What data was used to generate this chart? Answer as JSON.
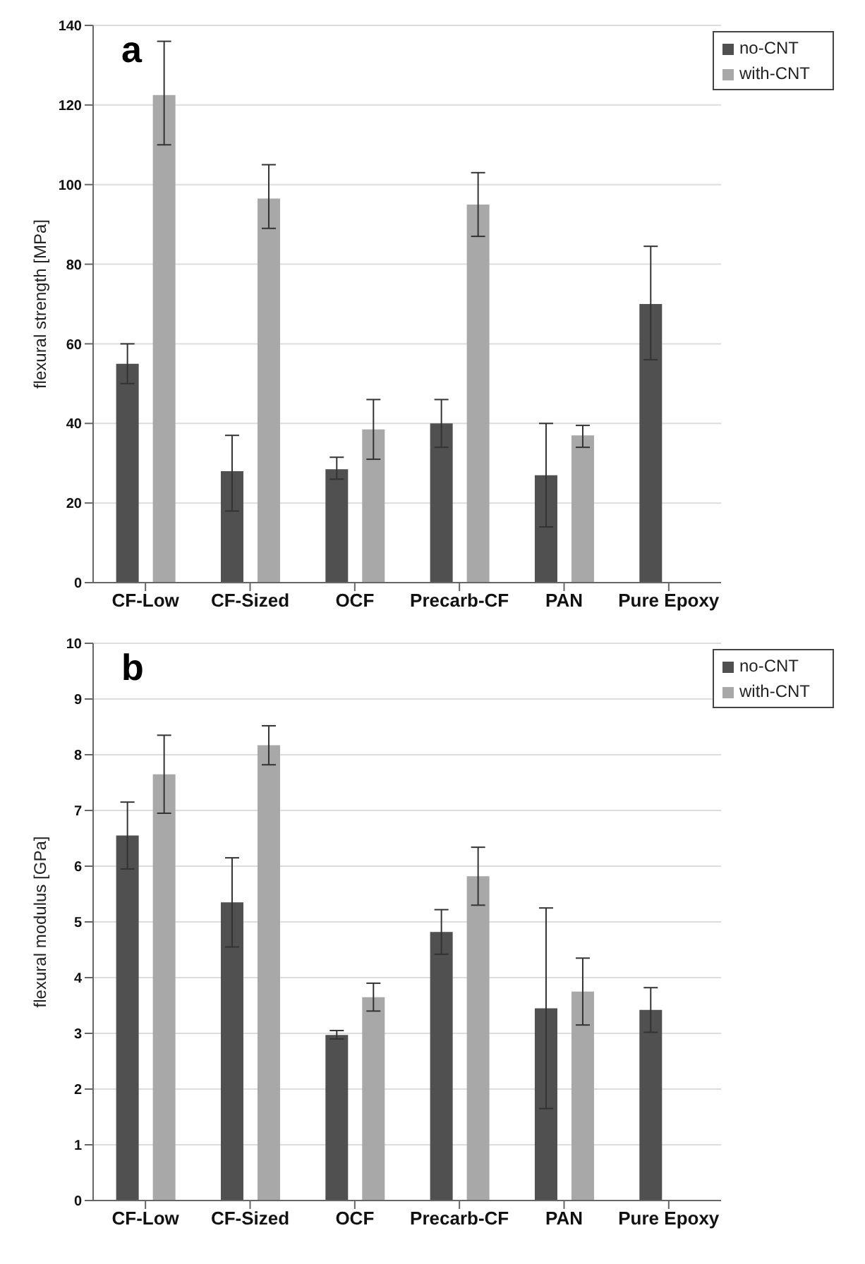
{
  "chart_data": [
    {
      "type": "bar",
      "title": "a",
      "ylabel": "flexural strength  [MPa]",
      "categories": [
        "CF-Low",
        "CF-Sized",
        "OCF",
        "Precarb-CF",
        "PAN",
        "Pure Epoxy"
      ],
      "ylim": [
        0,
        140
      ],
      "yticks": [
        0,
        20,
        40,
        60,
        80,
        100,
        120,
        140
      ],
      "grid": "y",
      "legend": "top right",
      "series": [
        {
          "name": "no-CNT",
          "color": "#505050",
          "values": [
            55,
            28,
            28.5,
            40,
            27,
            70
          ],
          "errors": [
            [
              50,
              60
            ],
            [
              18,
              37
            ],
            [
              26,
              31.5
            ],
            [
              34,
              46
            ],
            [
              14,
              40
            ],
            [
              56,
              84.5
            ]
          ]
        },
        {
          "name": "with-CNT",
          "color": "#a8a8a8",
          "values": [
            122.5,
            96.5,
            38.5,
            95,
            37,
            null
          ],
          "errors": [
            [
              110,
              136
            ],
            [
              89,
              105
            ],
            [
              31,
              46
            ],
            [
              87,
              103
            ],
            [
              34,
              39.5
            ],
            null
          ]
        }
      ]
    },
    {
      "type": "bar",
      "title": "b",
      "ylabel": "flexural modulus  [GPa]",
      "categories": [
        "CF-Low",
        "CF-Sized",
        "OCF",
        "Precarb-CF",
        "PAN",
        "Pure Epoxy"
      ],
      "ylim": [
        0,
        10
      ],
      "yticks": [
        0,
        1,
        2,
        3,
        4,
        5,
        6,
        7,
        8,
        9,
        10
      ],
      "grid": "y",
      "legend": "top right",
      "series": [
        {
          "name": "no-CNT",
          "color": "#505050",
          "values": [
            6.55,
            5.35,
            2.97,
            4.82,
            3.45,
            3.42
          ],
          "errors": [
            [
              5.95,
              7.15
            ],
            [
              4.55,
              6.15
            ],
            [
              2.9,
              3.05
            ],
            [
              4.42,
              5.22
            ],
            [
              1.65,
              5.25
            ],
            [
              3.02,
              3.82
            ]
          ]
        },
        {
          "name": "with-CNT",
          "color": "#a8a8a8",
          "values": [
            7.65,
            8.17,
            3.65,
            5.82,
            3.75,
            null
          ],
          "errors": [
            [
              6.95,
              8.35
            ],
            [
              7.82,
              8.52
            ],
            [
              3.4,
              3.9
            ],
            [
              5.3,
              6.34
            ],
            [
              3.15,
              4.35
            ],
            null
          ]
        }
      ]
    }
  ]
}
